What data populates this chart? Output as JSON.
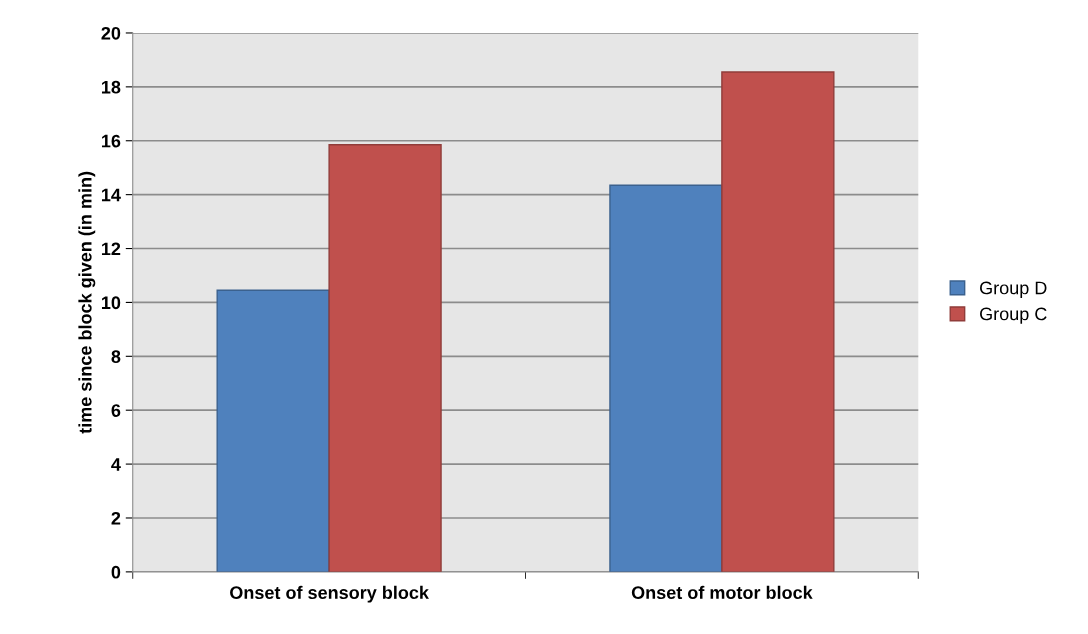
{
  "chart_data": {
    "type": "bar",
    "ylabel": "time since block given (in min)",
    "categories": [
      "Onset of sensory block",
      "Onset of motor block"
    ],
    "series": [
      {
        "name": "Group D",
        "color": "#4f81bd",
        "values": [
          10.45,
          14.35
        ]
      },
      {
        "name": "Group C",
        "color": "#c0504d",
        "values": [
          15.85,
          18.55
        ]
      }
    ],
    "ylim": [
      0,
      20
    ],
    "yticks": [
      0,
      2,
      4,
      6,
      8,
      10,
      12,
      14,
      16,
      18,
      20
    ],
    "grid": "y",
    "legend": "right"
  }
}
